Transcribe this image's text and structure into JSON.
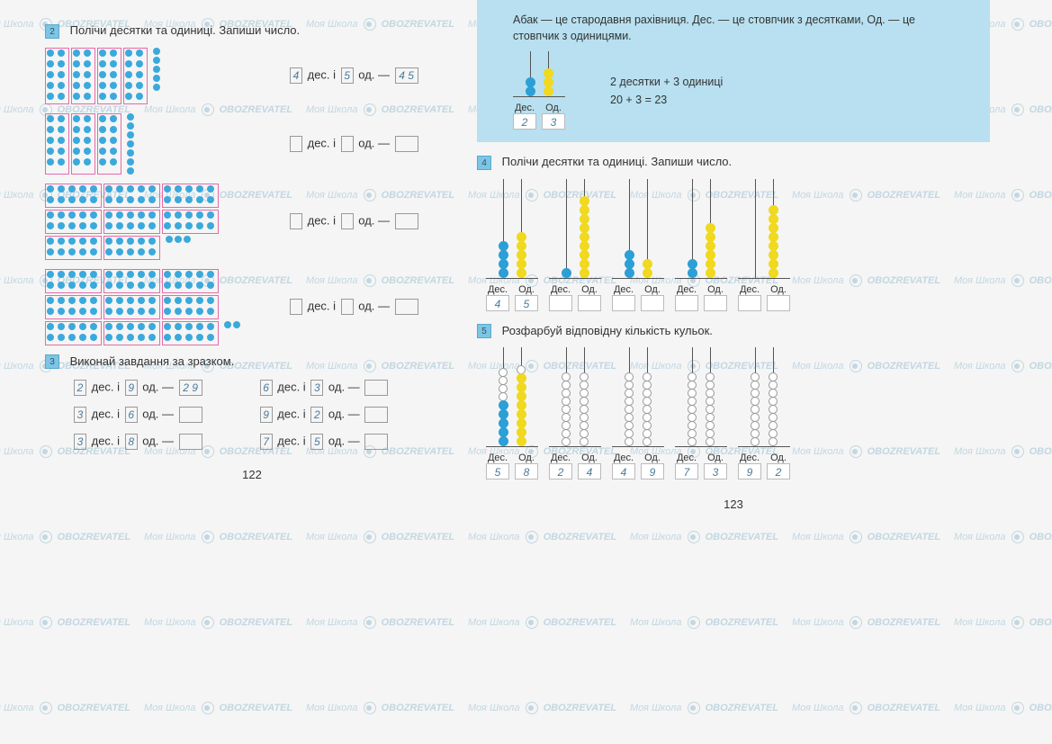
{
  "watermark_text_a": "Моя Школа",
  "watermark_text_b": "OBOZREVATEL",
  "watermark_color": "#a8c8d8",
  "task2": {
    "num": "2",
    "title": "Полічи десятки та одиниці. Запиши число.",
    "rows": [
      {
        "tens_blocks": 4,
        "loose": 5,
        "filled_tens": "4",
        "filled_ones": "5",
        "filled_num": "4 5"
      },
      {
        "tens_blocks": 3,
        "loose": 7,
        "filled_tens": "",
        "filled_ones": "",
        "filled_num": ""
      },
      {
        "tens_blocks": 8,
        "loose": 3,
        "filled_tens": "",
        "filled_ones": "",
        "filled_num": ""
      },
      {
        "tens_blocks": 9,
        "loose": 2,
        "filled_tens": "",
        "filled_ones": "",
        "filled_num": ""
      }
    ],
    "label_tens": "дес. і",
    "label_ones": "од. —"
  },
  "task3": {
    "num": "3",
    "title": "Виконай завдання за зразком.",
    "rows": [
      [
        {
          "t": "2",
          "o": "9",
          "r": "2 9"
        },
        {
          "t": "6",
          "o": "3",
          "r": ""
        }
      ],
      [
        {
          "t": "3",
          "o": "6",
          "r": ""
        },
        {
          "t": "9",
          "o": "2",
          "r": ""
        }
      ],
      [
        {
          "t": "3",
          "o": "8",
          "r": ""
        },
        {
          "t": "7",
          "o": "5",
          "r": ""
        }
      ]
    ]
  },
  "page_left_num": "122",
  "abacus_info": {
    "desc": "Абак — це стародавня рахівниця. Дес. — це стовпчик з десятками, Од. — це стовпчик з одиницями.",
    "tens_label": "Дес.",
    "ones_label": "Од.",
    "example": {
      "tens_beads": 2,
      "ones_beads": 3,
      "tens_val": "2",
      "ones_val": "3"
    },
    "eq1": "2 десятки + 3 одиниці",
    "eq2": "20 + 3 = 23"
  },
  "task4": {
    "num": "4",
    "title": "Полічи десятки та одиниці. Запиши число.",
    "abacuses": [
      {
        "tens_beads": 4,
        "ones_beads": 5,
        "tens_val": "4",
        "ones_val": "5"
      },
      {
        "tens_beads": 1,
        "ones_beads": 9,
        "tens_val": "",
        "ones_val": ""
      },
      {
        "tens_beads": 3,
        "ones_beads": 2,
        "tens_val": "",
        "ones_val": ""
      },
      {
        "tens_beads": 2,
        "ones_beads": 6,
        "tens_val": "",
        "ones_val": ""
      },
      {
        "tens_beads": 0,
        "ones_beads": 8,
        "tens_val": "",
        "ones_val": ""
      }
    ]
  },
  "task5": {
    "num": "5",
    "title": "Розфарбуй відповідну кількість кульок.",
    "abacuses": [
      {
        "tens_beads": 5,
        "ones_beads": 8,
        "tens_val": "5",
        "ones_val": "8"
      },
      {
        "tens_beads": 0,
        "ones_beads": 0,
        "tens_val": "2",
        "ones_val": "4"
      },
      {
        "tens_beads": 0,
        "ones_beads": 0,
        "tens_val": "4",
        "ones_val": "9"
      },
      {
        "tens_beads": 0,
        "ones_beads": 0,
        "tens_val": "7",
        "ones_val": "3"
      },
      {
        "tens_beads": 0,
        "ones_beads": 0,
        "tens_val": "9",
        "ones_val": "2"
      }
    ]
  },
  "page_right_num": "123",
  "colors": {
    "bead_blue": "#2b9fd6",
    "bead_yellow": "#f0d91e",
    "dot_blue": "#3ba9db",
    "block_border": "#e56aa8",
    "info_bg": "#b8e0f0",
    "task_badge": "#7cc5e5"
  }
}
